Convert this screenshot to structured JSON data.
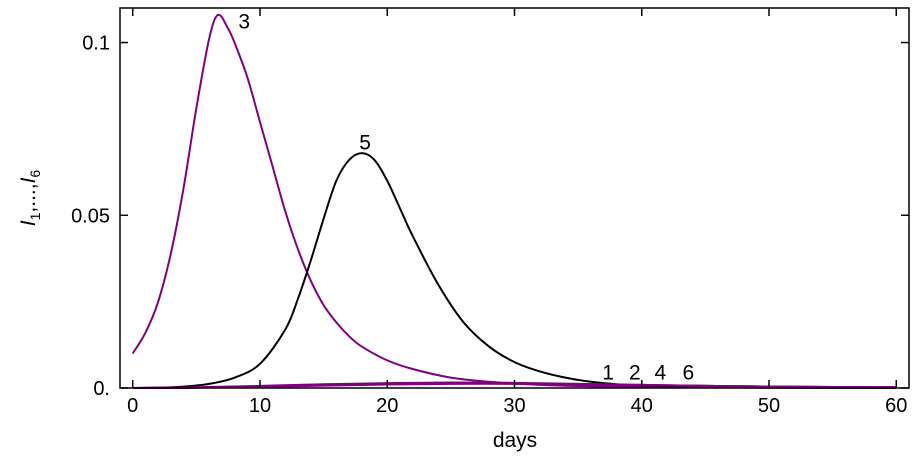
{
  "chart_data": {
    "type": "line",
    "xlabel": "days",
    "ylabel": {
      "var": "I",
      "sub1": "1",
      "sep": ",...,",
      "sub2": "6"
    },
    "xlim": [
      -1,
      61
    ],
    "ylim": [
      0,
      0.11
    ],
    "xticks": [
      {
        "value": 0,
        "label": "0"
      },
      {
        "value": 10,
        "label": "10"
      },
      {
        "value": 20,
        "label": "20"
      },
      {
        "value": 30,
        "label": "30"
      },
      {
        "value": 40,
        "label": "40"
      },
      {
        "value": 50,
        "label": "50"
      },
      {
        "value": 60,
        "label": "60"
      }
    ],
    "yticks": [
      {
        "value": 0,
        "label": "0."
      },
      {
        "value": 0.05,
        "label": "0.05"
      },
      {
        "value": 0.1,
        "label": "0.1"
      }
    ],
    "grid": false,
    "series": [
      {
        "name": "3",
        "color": "#800080",
        "x": [
          0,
          1,
          2,
          3,
          4,
          5,
          6,
          6.7,
          7.5,
          8,
          9,
          10,
          11,
          12,
          13,
          14,
          15,
          16,
          17,
          18,
          20,
          22,
          25,
          28,
          32,
          36,
          40,
          50,
          60
        ],
        "y": [
          0.01,
          0.016,
          0.025,
          0.039,
          0.058,
          0.081,
          0.101,
          0.108,
          0.104,
          0.1,
          0.09,
          0.077,
          0.064,
          0.051,
          0.04,
          0.031,
          0.024,
          0.019,
          0.015,
          0.012,
          0.008,
          0.0055,
          0.003,
          0.0018,
          0.0009,
          0.0005,
          0.0003,
          0.0001,
          0.0
        ]
      },
      {
        "name": "5",
        "color": "#000000",
        "x": [
          0,
          2,
          4,
          6,
          8,
          10,
          12,
          13,
          14,
          15,
          16,
          17,
          18,
          19,
          20,
          21,
          22,
          24,
          26,
          28,
          30,
          32,
          34,
          36,
          38,
          40,
          45,
          50,
          55,
          60
        ],
        "y": [
          0.0,
          0.0001,
          0.0004,
          0.0012,
          0.003,
          0.007,
          0.017,
          0.026,
          0.037,
          0.049,
          0.06,
          0.066,
          0.068,
          0.066,
          0.06,
          0.052,
          0.044,
          0.03,
          0.019,
          0.012,
          0.0075,
          0.0048,
          0.003,
          0.0018,
          0.0011,
          0.0007,
          0.0003,
          0.0001,
          5e-05,
          0.0
        ]
      },
      {
        "name": "1",
        "color": "#800080",
        "x": [
          0,
          5,
          10,
          15,
          20,
          25,
          30,
          35,
          40,
          45,
          50,
          55,
          60
        ],
        "y": [
          0.0,
          0.0002,
          0.0006,
          0.0011,
          0.0014,
          0.0016,
          0.0015,
          0.0012,
          0.0009,
          0.0006,
          0.0004,
          0.0003,
          0.0002
        ]
      },
      {
        "name": "2",
        "color": "#800080",
        "x": [
          0,
          5,
          10,
          15,
          20,
          25,
          30,
          35,
          40,
          45,
          50,
          55,
          60
        ],
        "y": [
          0.0,
          0.00015,
          0.0005,
          0.0009,
          0.0012,
          0.0014,
          0.0013,
          0.0011,
          0.0008,
          0.0006,
          0.0004,
          0.0003,
          0.0002
        ]
      },
      {
        "name": "4",
        "color": "#800080",
        "x": [
          0,
          5,
          10,
          15,
          20,
          25,
          30,
          35,
          40,
          45,
          50,
          55,
          60
        ],
        "y": [
          0.0,
          0.0001,
          0.0004,
          0.0008,
          0.0011,
          0.0013,
          0.0013,
          0.0011,
          0.0009,
          0.0006,
          0.0004,
          0.0003,
          0.0002
        ]
      },
      {
        "name": "6",
        "color": "#800080",
        "x": [
          0,
          5,
          10,
          15,
          20,
          25,
          30,
          35,
          40,
          45,
          50,
          55,
          60
        ],
        "y": [
          0.0,
          0.0001,
          0.0003,
          0.0007,
          0.001,
          0.0012,
          0.0012,
          0.001,
          0.0008,
          0.0006,
          0.0004,
          0.0003,
          0.0002
        ]
      }
    ],
    "annotations": [
      {
        "text": "3",
        "x": 8.3,
        "y": 0.104
      },
      {
        "text": "5",
        "x": 17.8,
        "y": 0.069
      },
      {
        "text": "1",
        "x": 36.9,
        "y": 0.0025
      },
      {
        "text": "2",
        "x": 39.0,
        "y": 0.0025
      },
      {
        "text": "4",
        "x": 41.0,
        "y": 0.0025
      },
      {
        "text": "6",
        "x": 43.2,
        "y": 0.0025
      }
    ]
  }
}
